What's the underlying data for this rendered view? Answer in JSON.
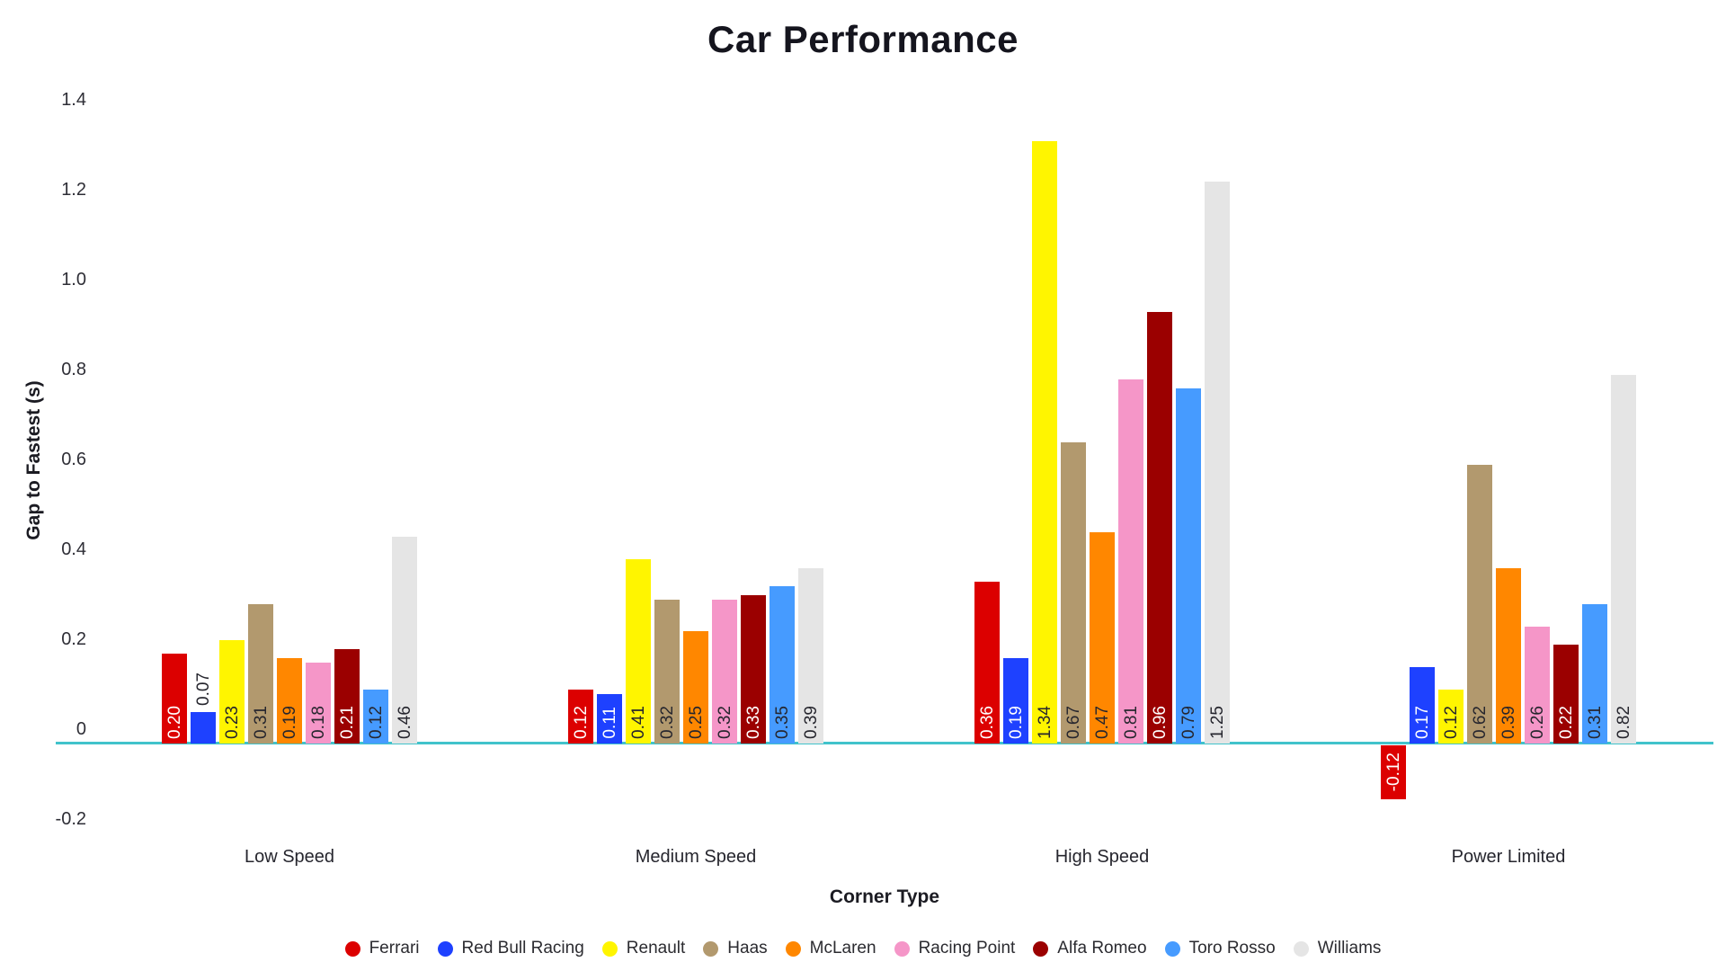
{
  "chart_data": {
    "type": "bar",
    "title": "Car Performance",
    "xlabel": "Corner Type",
    "ylabel": "Gap to Fastest (s)",
    "categories": [
      "Low Speed",
      "Medium Speed",
      "High Speed",
      "Power Limited"
    ],
    "series": [
      {
        "name": "Ferrari",
        "color": "#DC0000",
        "label_color": "#ffffff",
        "values": [
          0.2,
          0.12,
          0.36,
          -0.12
        ],
        "labels": [
          "0.20",
          "0.12",
          "0.36",
          "-0.12"
        ]
      },
      {
        "name": "Red Bull Racing",
        "color": "#1E41FF",
        "label_color": "#ffffff",
        "values": [
          0.07,
          0.11,
          0.19,
          0.17
        ],
        "labels": [
          "0.07",
          "0.11",
          "0.19",
          "0.17"
        ]
      },
      {
        "name": "Renault",
        "color": "#FFF500",
        "label_color": "#26262e",
        "values": [
          0.23,
          0.41,
          1.34,
          0.12
        ],
        "labels": [
          "0.23",
          "0.41",
          "1.34",
          "0.12"
        ]
      },
      {
        "name": "Haas",
        "color": "#B2996E",
        "label_color": "#26262e",
        "values": [
          0.31,
          0.32,
          0.67,
          0.62
        ],
        "labels": [
          "0.31",
          "0.32",
          "0.67",
          "0.62"
        ]
      },
      {
        "name": "McLaren",
        "color": "#FF8700",
        "label_color": "#26262e",
        "values": [
          0.19,
          0.25,
          0.47,
          0.39
        ],
        "labels": [
          "0.19",
          "0.25",
          "0.47",
          "0.39"
        ]
      },
      {
        "name": "Racing Point",
        "color": "#F596C8",
        "label_color": "#26262e",
        "values": [
          0.18,
          0.32,
          0.81,
          0.26
        ],
        "labels": [
          "0.18",
          "0.32",
          "0.81",
          "0.26"
        ]
      },
      {
        "name": "Alfa Romeo",
        "color": "#9B0000",
        "label_color": "#ffffff",
        "values": [
          0.21,
          0.33,
          0.96,
          0.22
        ],
        "labels": [
          "0.21",
          "0.33",
          "0.96",
          "0.22"
        ]
      },
      {
        "name": "Toro Rosso",
        "color": "#469BFF",
        "label_color": "#26262e",
        "values": [
          0.12,
          0.35,
          0.79,
          0.31
        ],
        "labels": [
          "0.12",
          "0.35",
          "0.79",
          "0.31"
        ]
      },
      {
        "name": "Williams",
        "color": "#E5E5E5",
        "label_color": "#26262e",
        "values": [
          0.46,
          0.39,
          1.25,
          0.82
        ],
        "labels": [
          "0.46",
          "0.39",
          "1.25",
          "0.82"
        ]
      }
    ],
    "yticks": [
      {
        "label": "1.4",
        "value": 1.4
      },
      {
        "label": "1.2",
        "value": 1.2
      },
      {
        "label": "1.0",
        "value": 1.0
      },
      {
        "label": "0.8",
        "value": 0.8
      },
      {
        "label": "0.6",
        "value": 0.6
      },
      {
        "label": "0.4",
        "value": 0.4
      },
      {
        "label": "0.2",
        "value": 0.2
      },
      {
        "label": "0",
        "value": 0.0
      },
      {
        "label": "-0.2",
        "value": -0.2
      }
    ],
    "ylim": [
      -0.2,
      1.4
    ],
    "grid": false,
    "legend_position": "bottom",
    "axis_line_color": "#41C3CB",
    "outside_label_color": "#26262e"
  }
}
